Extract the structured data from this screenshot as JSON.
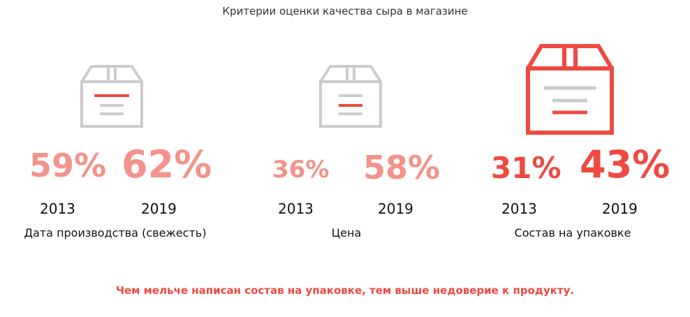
{
  "title": "Критерии оценки качества сыра в магазине",
  "footer": "Чем мельче написан состав  на упаковке, тем выше недоверие к продукту.",
  "colors": {
    "box_gray": "#cccccc",
    "accent": "#ee4a41",
    "pct_light": "#f3938a",
    "pct_strong": "#ee4a41"
  },
  "chart_data": {
    "type": "bar",
    "title": "Критерии оценки качества сыра в магазине",
    "x": [
      "2013",
      "2019"
    ],
    "categories": [
      "Дата производства (свежесть)",
      "Цена",
      "Состав на упаковке"
    ],
    "series": [
      {
        "category": "Дата производства (свежесть)",
        "icon": "box-icon",
        "values": [
          59,
          62
        ],
        "labels": [
          "59%",
          "62%"
        ]
      },
      {
        "category": "Цена",
        "icon": "box-icon",
        "values": [
          36,
          58
        ],
        "labels": [
          "36%",
          "58%"
        ]
      },
      {
        "category": "Состав на упаковке",
        "icon": "box-icon",
        "values": [
          31,
          43
        ],
        "labels": [
          "31%",
          "43%"
        ]
      }
    ]
  }
}
